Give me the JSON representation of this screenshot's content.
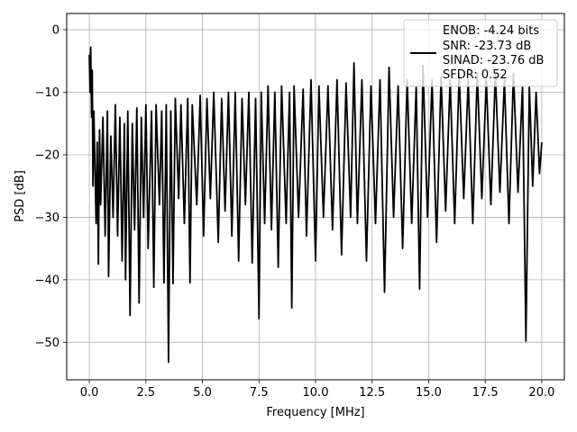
{
  "chart_data": {
    "type": "line",
    "title": "",
    "xlabel": "Frequency [MHz]",
    "ylabel": "PSD [dB]",
    "xlim": [
      -1.0,
      21.0
    ],
    "ylim": [
      -56.0,
      2.6
    ],
    "xticks": [
      0.0,
      2.5,
      5.0,
      7.5,
      10.0,
      12.5,
      15.0,
      17.5,
      20.0
    ],
    "xtick_labels": [
      "0.0",
      "2.5",
      "5.0",
      "7.5",
      "10.0",
      "12.5",
      "15.0",
      "17.5",
      "20.0"
    ],
    "yticks": [
      0,
      -10,
      -20,
      -30,
      -40,
      -50
    ],
    "ytick_labels": [
      "0",
      "−10",
      "−20",
      "−30",
      "−40",
      "−50"
    ],
    "grid": true,
    "legend_position": "top-right",
    "series_color": "#000000",
    "legend": [
      "ENOB: -4.24 bits",
      "SNR: -23.73 dB",
      "SINAD: -23.76 dB",
      "SFDR: 0.52"
    ],
    "series": [
      {
        "values_summary": "dense noise PSD spanning 0 to 20 MHz",
        "points": [
          [
            0.0,
            -4.0
          ],
          [
            0.03,
            -10.0
          ],
          [
            0.06,
            -2.8
          ],
          [
            0.1,
            -14.0
          ],
          [
            0.13,
            -6.5
          ],
          [
            0.16,
            -25.0
          ],
          [
            0.2,
            -13.0
          ],
          [
            0.25,
            -22.0
          ],
          [
            0.3,
            -31.0
          ],
          [
            0.35,
            -18.0
          ],
          [
            0.4,
            -37.5
          ],
          [
            0.45,
            -16.0
          ],
          [
            0.5,
            -28.0
          ],
          [
            0.6,
            -14.0
          ],
          [
            0.7,
            -33.0
          ],
          [
            0.8,
            -13.0
          ],
          [
            0.85,
            -39.5
          ],
          [
            0.95,
            -17.0
          ],
          [
            1.05,
            -30.0
          ],
          [
            1.15,
            -12.0
          ],
          [
            1.25,
            -33.0
          ],
          [
            1.35,
            -14.0
          ],
          [
            1.45,
            -37.0
          ],
          [
            1.55,
            -15.0
          ],
          [
            1.6,
            -40.0
          ],
          [
            1.7,
            -13.0
          ],
          [
            1.8,
            -45.7
          ],
          [
            1.9,
            -15.0
          ],
          [
            2.0,
            -32.0
          ],
          [
            2.1,
            -12.5
          ],
          [
            2.2,
            -43.7
          ],
          [
            2.3,
            -14.0
          ],
          [
            2.4,
            -30.0
          ],
          [
            2.5,
            -12.0
          ],
          [
            2.6,
            -35.0
          ],
          [
            2.75,
            -13.0
          ],
          [
            2.85,
            -41.2
          ],
          [
            2.95,
            -12.0
          ],
          [
            3.1,
            -28.0
          ],
          [
            3.2,
            -13.0
          ],
          [
            3.3,
            -40.5
          ],
          [
            3.4,
            -12.0
          ],
          [
            3.5,
            -53.2
          ],
          [
            3.6,
            -13.0
          ],
          [
            3.7,
            -40.6
          ],
          [
            3.8,
            -11.0
          ],
          [
            3.95,
            -27.0
          ],
          [
            4.05,
            -12.0
          ],
          [
            4.2,
            -31.0
          ],
          [
            4.35,
            -11.0
          ],
          [
            4.45,
            -40.5
          ],
          [
            4.55,
            -12.0
          ],
          [
            4.75,
            -28.0
          ],
          [
            4.9,
            -10.5
          ],
          [
            5.05,
            -33.0
          ],
          [
            5.2,
            -11.0
          ],
          [
            5.35,
            -27.0
          ],
          [
            5.5,
            -10.0
          ],
          [
            5.7,
            -34.0
          ],
          [
            5.85,
            -11.0
          ],
          [
            6.0,
            -29.0
          ],
          [
            6.15,
            -10.0
          ],
          [
            6.3,
            -33.0
          ],
          [
            6.45,
            -10.0
          ],
          [
            6.6,
            -37.0
          ],
          [
            6.75,
            -11.0
          ],
          [
            6.9,
            -28.0
          ],
          [
            7.05,
            -10.0
          ],
          [
            7.2,
            -37.3
          ],
          [
            7.35,
            -11.0
          ],
          [
            7.5,
            -46.2
          ],
          [
            7.6,
            -10.0
          ],
          [
            7.75,
            -31.0
          ],
          [
            7.9,
            -9.0
          ],
          [
            8.05,
            -32.0
          ],
          [
            8.2,
            -10.0
          ],
          [
            8.35,
            -38.0
          ],
          [
            8.5,
            -9.0
          ],
          [
            8.7,
            -31.0
          ],
          [
            8.85,
            -10.0
          ],
          [
            8.95,
            -44.5
          ],
          [
            9.05,
            -9.0
          ],
          [
            9.25,
            -30.0
          ],
          [
            9.45,
            -9.5
          ],
          [
            9.6,
            -33.0
          ],
          [
            9.8,
            -8.0
          ],
          [
            10.0,
            -37.0
          ],
          [
            10.15,
            -9.0
          ],
          [
            10.35,
            -30.0
          ],
          [
            10.55,
            -9.0
          ],
          [
            10.75,
            -32.0
          ],
          [
            10.95,
            -8.0
          ],
          [
            11.15,
            -36.0
          ],
          [
            11.35,
            -8.5
          ],
          [
            11.55,
            -30.0
          ],
          [
            11.7,
            -5.3
          ],
          [
            11.85,
            -31.0
          ],
          [
            12.05,
            -8.0
          ],
          [
            12.25,
            -37.0
          ],
          [
            12.45,
            -9.0
          ],
          [
            12.65,
            -31.0
          ],
          [
            12.85,
            -8.0
          ],
          [
            13.05,
            -42.0
          ],
          [
            13.25,
            -6.0
          ],
          [
            13.45,
            -30.0
          ],
          [
            13.65,
            -9.0
          ],
          [
            13.85,
            -35.0
          ],
          [
            14.05,
            -8.0
          ],
          [
            14.25,
            -31.0
          ],
          [
            14.45,
            -9.0
          ],
          [
            14.6,
            -41.5
          ],
          [
            14.75,
            -5.7
          ],
          [
            14.95,
            -30.0
          ],
          [
            15.15,
            -8.0
          ],
          [
            15.35,
            -34.0
          ],
          [
            15.55,
            -7.5
          ],
          [
            15.75,
            -29.0
          ],
          [
            15.95,
            -8.0
          ],
          [
            16.15,
            -31.0
          ],
          [
            16.35,
            -7.0
          ],
          [
            16.55,
            -27.0
          ],
          [
            16.75,
            -8.0
          ],
          [
            16.95,
            -31.0
          ],
          [
            17.15,
            -7.0
          ],
          [
            17.35,
            -27.0
          ],
          [
            17.55,
            -8.0
          ],
          [
            17.75,
            -28.0
          ],
          [
            17.95,
            -7.0
          ],
          [
            18.15,
            -26.0
          ],
          [
            18.35,
            -8.0
          ],
          [
            18.55,
            -31.0
          ],
          [
            18.75,
            -7.0
          ],
          [
            18.95,
            -26.0
          ],
          [
            19.15,
            -9.0
          ],
          [
            19.3,
            -49.8
          ],
          [
            19.45,
            -9.0
          ],
          [
            19.6,
            -25.0
          ],
          [
            19.75,
            -10.0
          ],
          [
            19.9,
            -23.0
          ],
          [
            20.0,
            -18.0
          ]
        ]
      }
    ]
  }
}
